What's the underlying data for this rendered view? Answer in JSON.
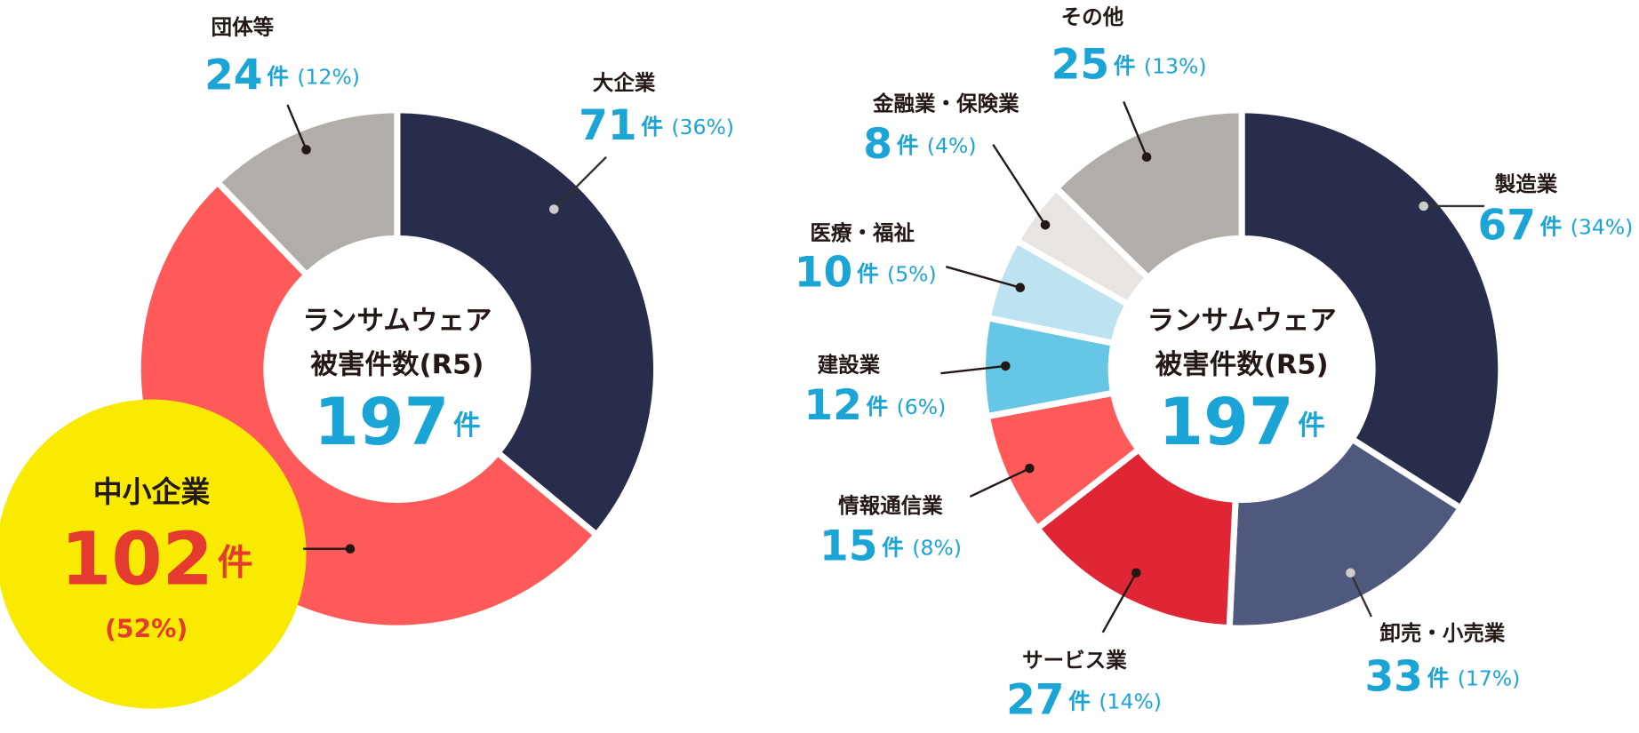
{
  "chart_data": [
    {
      "type": "pie",
      "donut": true,
      "center_label": [
        "ランサムウェア",
        "被害件数(R5)"
      ],
      "total": 197,
      "unit": "件",
      "categories": [
        "大企業",
        "中小企業",
        "団体等"
      ],
      "values": [
        71,
        102,
        24
      ],
      "shares": [
        "(36%)",
        "(52%)",
        "(12%)"
      ],
      "colors": [
        "#272d4a",
        "#fe5a5a",
        "#b1aeaa"
      ]
    },
    {
      "type": "pie",
      "donut": true,
      "center_label": [
        "ランサムウェア",
        "被害件数(R5)"
      ],
      "total": 197,
      "unit": "件",
      "categories": [
        "製造業",
        "卸売・小売業",
        "サービス業",
        "情報通信業",
        "建設業",
        "医療・福祉",
        "金融業・保険業",
        "その他"
      ],
      "values": [
        67,
        33,
        27,
        15,
        12,
        10,
        8,
        25
      ],
      "shares": [
        "(34%)",
        "(17%)",
        "(14%)",
        "(8%)",
        "(6%)",
        "(5%)",
        "(4%)",
        "(13%)"
      ],
      "colors": [
        "#272d4a",
        "#4f587d",
        "#e02535",
        "#fe5a5a",
        "#65c6e6",
        "#bde3f0",
        "#e8e4e1",
        "#b1aeaa"
      ]
    }
  ]
}
